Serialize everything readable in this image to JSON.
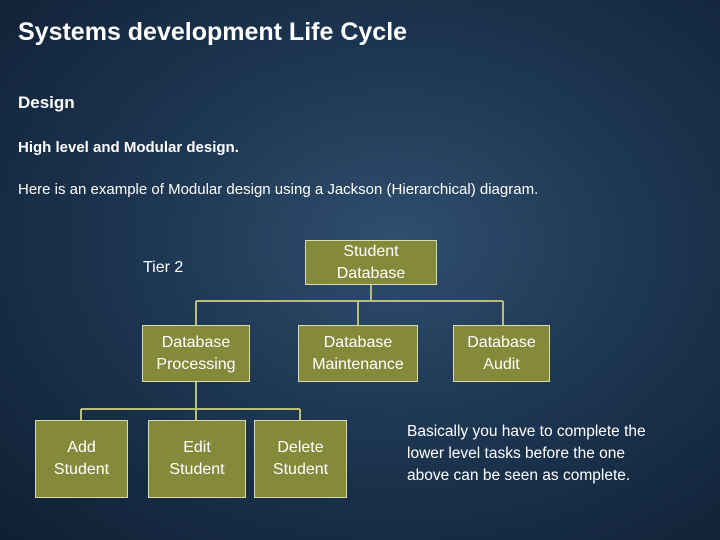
{
  "title": "Systems development Life Cycle",
  "heading": "Design",
  "subheading": "High level and Modular design.",
  "intro": "Here is an example of Modular design using a Jackson (Hierarchical) diagram.",
  "tier_label": "Tier 2",
  "nodes": [
    {
      "label": "Student Database"
    },
    {
      "label": "Database Processing"
    },
    {
      "label": "Database Maintenance"
    },
    {
      "label": "Database Audit"
    },
    {
      "label": "Add Student"
    },
    {
      "label": "Edit Student"
    },
    {
      "label": "Delete Student"
    }
  ],
  "note": "Basically you have to complete the lower level tasks before the one above can be seen as complete."
}
